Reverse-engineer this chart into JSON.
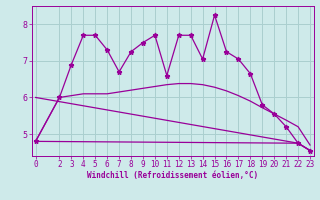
{
  "bg_color": "#ceeaea",
  "line_color": "#990099",
  "grid_color": "#aacfcf",
  "xlabel": "Windchill (Refroidissement éolien,°C)",
  "xlabel_color": "#990099",
  "yticks": [
    5,
    6,
    7,
    8
  ],
  "xticks": [
    0,
    2,
    3,
    4,
    5,
    6,
    7,
    8,
    9,
    10,
    11,
    12,
    13,
    14,
    15,
    16,
    17,
    18,
    19,
    20,
    21,
    22,
    23
  ],
  "series1_x": [
    0,
    2,
    3,
    4,
    5,
    6,
    7,
    8,
    9,
    10,
    11,
    12,
    13,
    14,
    15,
    16,
    17,
    18,
    19,
    20,
    21,
    22,
    23
  ],
  "series1_y": [
    4.8,
    6.0,
    6.9,
    7.7,
    7.7,
    7.3,
    6.7,
    7.25,
    7.5,
    7.7,
    6.6,
    7.7,
    7.7,
    7.05,
    8.25,
    7.25,
    7.05,
    6.65,
    5.8,
    5.55,
    5.2,
    4.75,
    4.55
  ],
  "series2_x": [
    0,
    2,
    3,
    4,
    5,
    6,
    7,
    8,
    9,
    10,
    11,
    12,
    13,
    14,
    15,
    16,
    17,
    18,
    19,
    20,
    21,
    22,
    23
  ],
  "series2_y": [
    4.8,
    6.0,
    6.05,
    6.1,
    6.1,
    6.1,
    6.15,
    6.2,
    6.25,
    6.3,
    6.35,
    6.38,
    6.38,
    6.35,
    6.28,
    6.18,
    6.05,
    5.9,
    5.72,
    5.55,
    5.38,
    5.2,
    4.7
  ],
  "series3_x": [
    0,
    22,
    23
  ],
  "series3_y": [
    4.8,
    4.75,
    4.55
  ],
  "series4_x": [
    0,
    22,
    23
  ],
  "series4_y": [
    6.0,
    4.75,
    4.55
  ],
  "ylim": [
    4.4,
    8.5
  ],
  "xlim": [
    -0.3,
    23.3
  ]
}
